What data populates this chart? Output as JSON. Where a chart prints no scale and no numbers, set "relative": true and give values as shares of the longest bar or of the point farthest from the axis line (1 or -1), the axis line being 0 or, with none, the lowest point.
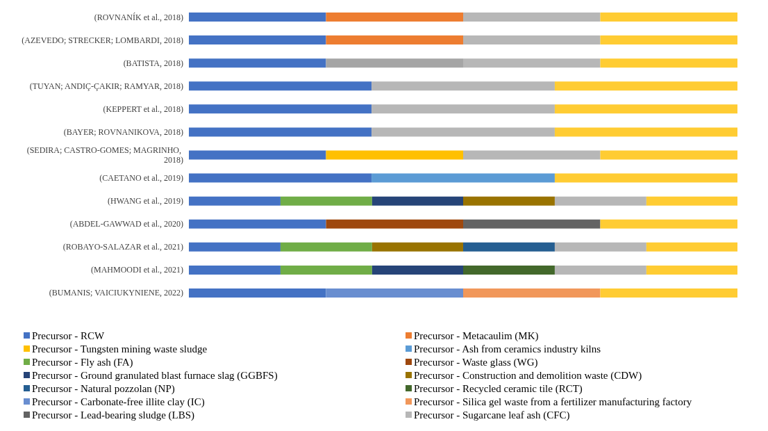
{
  "chart_data": {
    "type": "bar",
    "orientation": "horizontal",
    "stacked": true,
    "relative": true,
    "legend": "bottom",
    "categories": [
      "(ROVNANÍK et al., 2018)",
      "(AZEVEDO; STRECKER; LOMBARDI, 2018)",
      "(BATISTA, 2018)",
      "(TUYAN; ANDIÇ-ÇAKIR; RAMYAR, 2018)",
      "(KEPPERT et al., 2018)",
      "(BAYER; ROVNANIKOVA, 2018)",
      "(SEDIRA; CASTRO-GOMES; MAGRINHO, 2018)",
      "(CAETANO et al., 2019)",
      "(HWANG et al., 2019)",
      "(ABDEL-GAWWAD et al., 2020)",
      "(ROBAYO-SALAZAR et al., 2021)",
      "(MAHMOODI et al., 2021)",
      "(BUMANIS; VAICIUKYNIENE, 2022)"
    ],
    "series": [
      {
        "name": "Precursor - RCW",
        "color": "#4472c4",
        "values": [
          0.25,
          0.25,
          0.25,
          0.333,
          0.333,
          0.333,
          0.25,
          0.333,
          0.167,
          0.25,
          0.167,
          0.167,
          0.25
        ]
      },
      {
        "name": "Precursor - Metacaulim (MK)",
        "color": "#ed7d31",
        "values": [
          0.25,
          0.25,
          null,
          null,
          null,
          null,
          null,
          null,
          null,
          null,
          null,
          null,
          null
        ]
      },
      {
        "color": "#a5a5a5",
        "values": [
          null,
          null,
          0.25,
          null,
          null,
          null,
          null,
          null,
          null,
          null,
          null,
          null,
          null
        ]
      },
      {
        "name": "Precursor - Tungsten mining waste sludge",
        "color": "#ffc000",
        "values": [
          null,
          null,
          null,
          null,
          null,
          null,
          0.25,
          null,
          null,
          null,
          null,
          null,
          null
        ]
      },
      {
        "name": "Precursor - Ash from ceramics industry kilns",
        "color": "#5b9bd5",
        "values": [
          null,
          null,
          null,
          null,
          null,
          null,
          null,
          0.334,
          null,
          null,
          null,
          null,
          null
        ]
      },
      {
        "name": "Precursor - Fly ash (FA)",
        "color": "#70ad47",
        "values": [
          null,
          null,
          null,
          null,
          null,
          null,
          null,
          null,
          0.167,
          null,
          0.167,
          0.167,
          null
        ]
      },
      {
        "name": "Precursor - Waste glass (WG)",
        "color": "#9e480e",
        "values": [
          null,
          null,
          null,
          null,
          null,
          null,
          null,
          null,
          null,
          0.25,
          null,
          null,
          null
        ]
      },
      {
        "name": "Precursor - Ground granulated blast furnace slag (GGBFS)",
        "color": "#264478",
        "values": [
          null,
          null,
          null,
          null,
          null,
          null,
          null,
          null,
          0.166,
          null,
          null,
          0.166,
          null
        ]
      },
      {
        "name": "Precursor - Construction and demolition waste (CDW)",
        "color": "#997300",
        "values": [
          null,
          null,
          null,
          null,
          null,
          null,
          null,
          null,
          0.167,
          null,
          0.166,
          null,
          null
        ]
      },
      {
        "name": "Precursor - Natural pozzolan (NP)",
        "color": "#255e91",
        "values": [
          null,
          null,
          null,
          null,
          null,
          null,
          null,
          null,
          null,
          null,
          0.167,
          null,
          null
        ]
      },
      {
        "name": "Precursor - Recycled ceramic tile (RCT)",
        "color": "#43682b",
        "values": [
          null,
          null,
          null,
          null,
          null,
          null,
          null,
          null,
          null,
          null,
          null,
          0.167,
          null
        ]
      },
      {
        "name": "Precursor - Carbonate-free illite clay (IC)",
        "color": "#698ed0",
        "values": [
          null,
          null,
          null,
          null,
          null,
          null,
          null,
          null,
          null,
          null,
          null,
          null,
          0.25
        ]
      },
      {
        "name": "Precursor - Silica gel waste from a fertilizer manufacturing factory",
        "color": "#f1975a",
        "values": [
          null,
          null,
          null,
          null,
          null,
          null,
          null,
          null,
          null,
          null,
          null,
          null,
          0.25
        ]
      },
      {
        "name": "Precursor - Lead-bearing sludge (LBS)",
        "color": "#636363",
        "values": [
          null,
          null,
          null,
          null,
          null,
          null,
          null,
          null,
          null,
          0.25,
          null,
          null,
          null
        ]
      },
      {
        "name": "Precursor - Sugarcane leaf ash (CFC)",
        "color": "#b7b7b7",
        "values": [
          0.25,
          0.25,
          0.25,
          0.334,
          0.334,
          0.334,
          0.25,
          null,
          0.167,
          null,
          0.167,
          0.167,
          null
        ]
      },
      {
        "color": "#ffcc33",
        "values": [
          0.25,
          0.25,
          0.25,
          0.333,
          0.333,
          0.333,
          0.25,
          0.333,
          0.166,
          0.25,
          0.166,
          0.166,
          0.25
        ]
      }
    ]
  }
}
